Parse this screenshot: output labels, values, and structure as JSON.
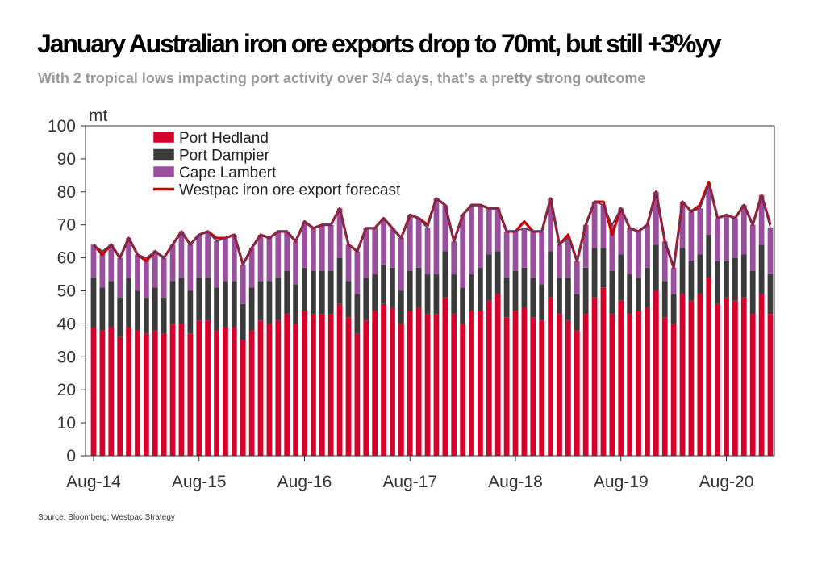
{
  "header": {
    "title": "January Australian iron ore exports drop to 70mt, but still +3%yy",
    "subtitle": "With 2 tropical lows impacting port activity over 3/4 days, that’s a pretty strong outcome"
  },
  "footer": {
    "source": "Source: Bloomberg; Westpac Strategy"
  },
  "colors": {
    "hedland": "#d6002a",
    "dampier": "#3b3b3b",
    "lambert": "#9a4f9e",
    "forecast": "#cc0000",
    "total_line": "#5b3a6a"
  },
  "chart_data": {
    "type": "bar",
    "stacked": true,
    "title": "January Australian iron ore exports drop to 70mt, but still +3%yy",
    "ylabel": "mt",
    "ylim": [
      0,
      100
    ],
    "yticks": [
      0,
      10,
      20,
      30,
      40,
      50,
      60,
      70,
      80,
      90,
      100
    ],
    "x_tick_labels": [
      "Aug-14",
      "Aug-15",
      "Aug-16",
      "Aug-17",
      "Aug-18",
      "Aug-19",
      "Aug-20"
    ],
    "x_tick_indices": [
      0,
      12,
      24,
      36,
      48,
      60,
      72
    ],
    "categories": [
      "Aug-14",
      "Sep-14",
      "Oct-14",
      "Nov-14",
      "Dec-14",
      "Jan-15",
      "Feb-15",
      "Mar-15",
      "Apr-15",
      "May-15",
      "Jun-15",
      "Jul-15",
      "Aug-15",
      "Sep-15",
      "Oct-15",
      "Nov-15",
      "Dec-15",
      "Jan-16",
      "Feb-16",
      "Mar-16",
      "Apr-16",
      "May-16",
      "Jun-16",
      "Jul-16",
      "Aug-16",
      "Sep-16",
      "Oct-16",
      "Nov-16",
      "Dec-16",
      "Jan-17",
      "Feb-17",
      "Mar-17",
      "Apr-17",
      "May-17",
      "Jun-17",
      "Jul-17",
      "Aug-17",
      "Sep-17",
      "Oct-17",
      "Nov-17",
      "Dec-17",
      "Jan-18",
      "Feb-18",
      "Mar-18",
      "Apr-18",
      "May-18",
      "Jun-18",
      "Jul-18",
      "Aug-18",
      "Sep-18",
      "Oct-18",
      "Nov-18",
      "Dec-18",
      "Jan-19",
      "Feb-19",
      "Mar-19",
      "Apr-19",
      "May-19",
      "Jun-19",
      "Jul-19",
      "Aug-19",
      "Sep-19",
      "Oct-19",
      "Nov-19",
      "Dec-19",
      "Jan-20",
      "Feb-20",
      "Mar-20",
      "Apr-20",
      "May-20",
      "Jun-20",
      "Jul-20",
      "Aug-20",
      "Sep-20",
      "Oct-20",
      "Nov-20",
      "Dec-20",
      "Jan-21"
    ],
    "legend": [
      "Port Hedland",
      "Port Dampier",
      "Cape Lambert",
      "Westpac iron ore export forecast"
    ],
    "legend_position": "top-left",
    "series": [
      {
        "name": "Port Hedland",
        "values": [
          39,
          38,
          39,
          36,
          39,
          38,
          37,
          38,
          37,
          40,
          40,
          37,
          41,
          41,
          38,
          39,
          39,
          35,
          38,
          41,
          40,
          41,
          43,
          40,
          44,
          43,
          43,
          43,
          46,
          42,
          37,
          41,
          44,
          46,
          45,
          40,
          44,
          45,
          43,
          43,
          48,
          43,
          40,
          44,
          44,
          47,
          49,
          42,
          44,
          45,
          42,
          41,
          48,
          43,
          41,
          38,
          43,
          48,
          51,
          43,
          47,
          43,
          44,
          45,
          50,
          42,
          40,
          49,
          47,
          49,
          54,
          46,
          48,
          47,
          48,
          43,
          49,
          43
        ]
      },
      {
        "name": "Port Dampier",
        "values": [
          15,
          13,
          14,
          12,
          15,
          12,
          11,
          13,
          11,
          13,
          14,
          13,
          13,
          13,
          13,
          14,
          14,
          11,
          13,
          12,
          13,
          13,
          13,
          12,
          13,
          13,
          13,
          13,
          14,
          11,
          12,
          13,
          11,
          12,
          12,
          10,
          12,
          12,
          12,
          12,
          14,
          12,
          11,
          11,
          13,
          14,
          13,
          12,
          12,
          12,
          12,
          11,
          14,
          11,
          13,
          11,
          14,
          15,
          12,
          13,
          14,
          12,
          10,
          12,
          14,
          11,
          9,
          14,
          12,
          12,
          13,
          13,
          11,
          13,
          13,
          13,
          15,
          12
        ]
      },
      {
        "name": "Cape Lambert",
        "values": [
          10,
          11,
          11,
          12,
          12,
          11,
          12,
          11,
          12,
          11,
          14,
          14,
          13,
          14,
          14,
          13,
          14,
          12,
          12,
          14,
          13,
          14,
          12,
          13,
          14,
          13,
          14,
          14,
          15,
          11,
          13,
          15,
          14,
          14,
          12,
          16,
          17,
          15,
          14,
          23,
          14,
          10,
          22,
          21,
          19,
          14,
          13,
          14,
          12,
          12,
          14,
          16,
          16,
          10,
          12,
          10,
          13,
          14,
          13,
          14,
          14,
          14,
          14,
          13,
          16,
          12,
          8,
          14,
          15,
          14,
          15,
          13,
          14,
          12,
          15,
          14,
          15,
          14
        ]
      },
      {
        "name": "Westpac iron ore export forecast",
        "type": "line",
        "values": [
          64,
          61,
          64,
          60,
          66,
          61,
          59,
          62,
          60,
          64,
          68,
          64,
          67,
          68,
          66,
          66,
          67,
          58,
          63,
          67,
          66,
          68,
          68,
          65,
          71,
          69,
          70,
          70,
          75,
          64,
          62,
          69,
          69,
          72,
          69,
          66,
          73,
          72,
          70,
          78,
          76,
          65,
          73,
          76,
          76,
          75,
          75,
          68,
          68,
          71,
          68,
          68,
          78,
          64,
          67,
          59,
          70,
          77,
          77,
          67,
          75,
          69,
          68,
          70,
          80,
          65,
          57,
          77,
          74,
          76,
          83,
          72,
          73,
          72,
          76,
          70,
          79,
          70
        ]
      }
    ]
  }
}
